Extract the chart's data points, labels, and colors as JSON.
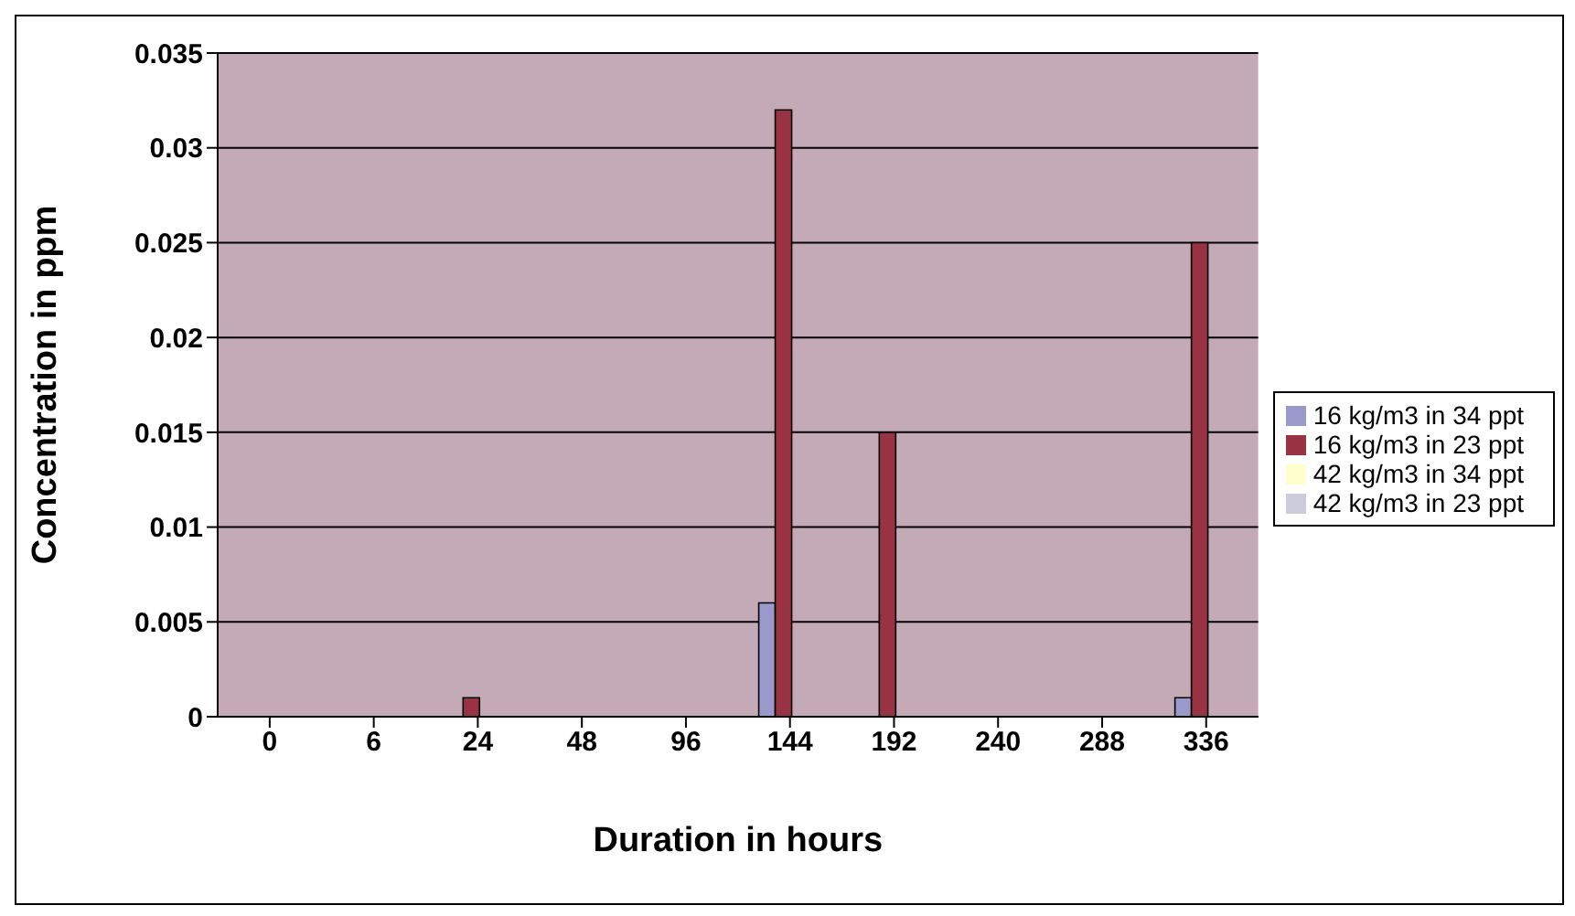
{
  "chart_data": {
    "type": "bar",
    "xlabel": "Duration in hours",
    "ylabel": "Concentration in ppm",
    "categories": [
      "0",
      "6",
      "24",
      "48",
      "96",
      "144",
      "192",
      "240",
      "288",
      "336"
    ],
    "series": [
      {
        "name": "16 kg/m3 in 34 ppt",
        "color": "#9999cc",
        "values": [
          0,
          0,
          0,
          0,
          0,
          0.006,
          0,
          0,
          0,
          0.001
        ]
      },
      {
        "name": "16 kg/m3 in 23 ppt",
        "color": "#993344",
        "values": [
          0,
          0,
          0.001,
          0,
          0,
          0.032,
          0.015,
          0,
          0,
          0.025
        ]
      },
      {
        "name": "42 kg/m3 in 34 ppt",
        "color": "#ffffcc",
        "values": [
          0,
          0,
          0,
          0,
          0,
          0,
          0,
          0,
          0,
          0
        ]
      },
      {
        "name": "42 kg/m3 in 23 ppt",
        "color": "#ccccdd",
        "values": [
          0,
          0,
          0,
          0,
          0,
          0,
          0,
          0,
          0,
          0
        ]
      }
    ],
    "ylim": [
      0,
      0.035
    ],
    "yticks": [
      0,
      0.005,
      0.01,
      0.015,
      0.02,
      0.025,
      0.03,
      0.035
    ],
    "grid": "y",
    "legend": "right"
  }
}
